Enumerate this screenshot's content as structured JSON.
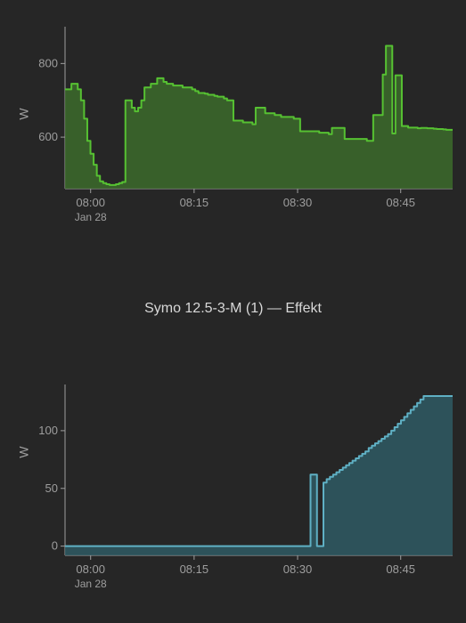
{
  "background_color": "#262626",
  "axis_color": "#9e9e9e",
  "axis_font_size": 13,
  "tick_len": 5,
  "chart1": {
    "type": "area-step",
    "y_axis_label": "W",
    "x_ticks": [
      "08:00",
      "08:15",
      "08:30",
      "08:45"
    ],
    "x_tick_positions": [
      0.066,
      0.333,
      0.6,
      0.866
    ],
    "x_sub_label": "Jan 28",
    "y_ticks": [
      600,
      800
    ],
    "ylim": [
      460,
      900
    ],
    "stroke_color": "#56c132",
    "fill_color": "#3c6b2b",
    "fill_opacity": 0.85,
    "stroke_width": 2,
    "values": [
      730,
      730,
      745,
      745,
      730,
      700,
      650,
      590,
      555,
      525,
      495,
      480,
      475,
      472,
      470,
      470,
      472,
      475,
      478,
      700,
      700,
      680,
      670,
      680,
      700,
      735,
      735,
      745,
      745,
      760,
      760,
      750,
      745,
      745,
      740,
      740,
      740,
      735,
      735,
      735,
      730,
      725,
      720,
      720,
      718,
      715,
      715,
      712,
      710,
      710,
      705,
      700,
      700,
      645,
      645,
      645,
      640,
      640,
      640,
      635,
      680,
      680,
      680,
      665,
      665,
      665,
      660,
      660,
      655,
      655,
      655,
      655,
      650,
      650,
      616,
      616,
      616,
      616,
      616,
      616,
      612,
      612,
      612,
      608,
      625,
      625,
      625,
      625,
      595,
      595,
      595,
      595,
      595,
      595,
      595,
      590,
      590,
      660,
      660,
      660,
      770,
      848,
      848,
      610,
      768,
      768,
      630,
      630,
      626,
      626,
      626,
      624,
      625,
      625,
      624,
      624,
      623,
      622,
      622,
      621,
      620,
      620,
      620
    ]
  },
  "chart2": {
    "type": "area-step",
    "title": "Symo 12.5-3-M (1) — Effekt",
    "y_axis_label": "W",
    "x_ticks": [
      "08:00",
      "08:15",
      "08:30",
      "08:45"
    ],
    "x_tick_positions": [
      0.066,
      0.333,
      0.6,
      0.866
    ],
    "x_sub_label": "Jan 28",
    "y_ticks": [
      0,
      50,
      100
    ],
    "ylim": [
      -8,
      140
    ],
    "stroke_color": "#5fb0c4",
    "fill_color": "#2f5a64",
    "fill_opacity": 0.85,
    "stroke_width": 2,
    "values": [
      0,
      0,
      0,
      0,
      0,
      0,
      0,
      0,
      0,
      0,
      0,
      0,
      0,
      0,
      0,
      0,
      0,
      0,
      0,
      0,
      0,
      0,
      0,
      0,
      0,
      0,
      0,
      0,
      0,
      0,
      0,
      0,
      0,
      0,
      0,
      0,
      0,
      0,
      0,
      0,
      0,
      0,
      0,
      0,
      0,
      0,
      0,
      0,
      0,
      0,
      0,
      0,
      0,
      0,
      0,
      0,
      0,
      0,
      0,
      0,
      0,
      0,
      0,
      0,
      0,
      0,
      0,
      0,
      0,
      0,
      0,
      0,
      0,
      0,
      0,
      0,
      62,
      62,
      0,
      0,
      55,
      58,
      60,
      62,
      64,
      66,
      68,
      70,
      72,
      74,
      76,
      78,
      80,
      82,
      85,
      87,
      89,
      91,
      93,
      95,
      97,
      100,
      103,
      106,
      109,
      112,
      115,
      118,
      121,
      124,
      127,
      130,
      130,
      130,
      130,
      130,
      130,
      130,
      130,
      130,
      130
    ]
  }
}
